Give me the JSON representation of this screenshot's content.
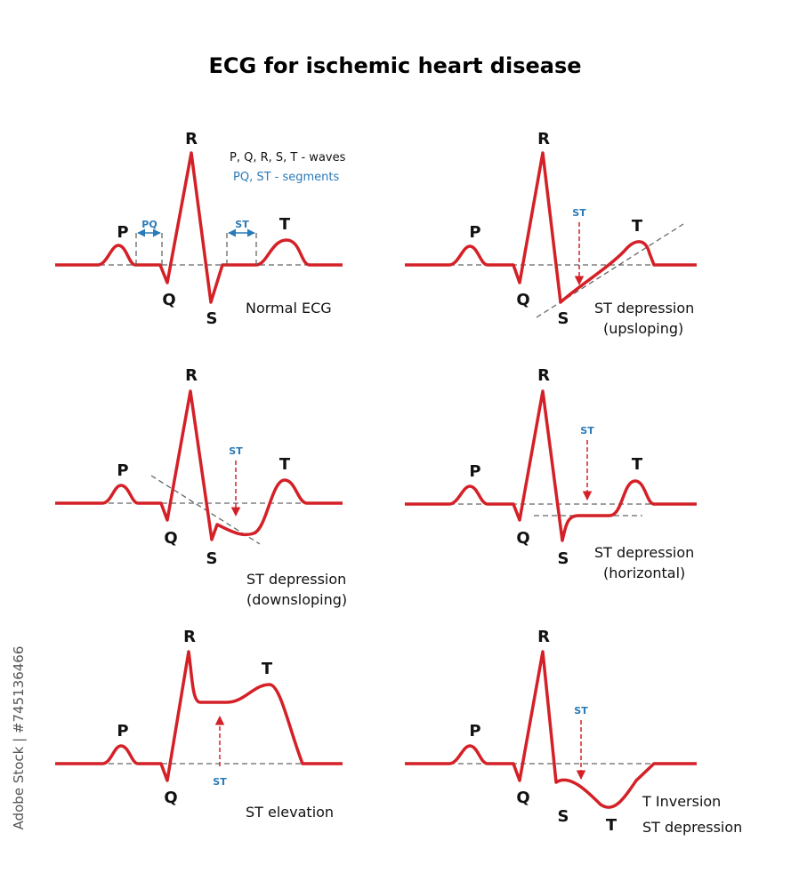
{
  "title": "ECG for ischemic heart disease",
  "watermark": "Adobe Stock | #745136466",
  "legend": [
    "P, Q, R, S, T - waves",
    "PQ, ST - segments"
  ],
  "panels": [
    {
      "labels": [
        "P",
        "Q",
        "R",
        "S",
        "T",
        "PQ",
        "ST"
      ],
      "caption": [
        "Normal ECG"
      ]
    },
    {
      "labels": [
        "P",
        "Q",
        "R",
        "S",
        "T",
        "ST"
      ],
      "caption": [
        "ST depression",
        "(upsloping)"
      ]
    },
    {
      "labels": [
        "P",
        "Q",
        "R",
        "S",
        "T",
        "ST"
      ],
      "caption": [
        "ST depression",
        "(downsloping)"
      ]
    },
    {
      "labels": [
        "P",
        "Q",
        "R",
        "S",
        "T",
        "ST"
      ],
      "caption": [
        "ST depression",
        "(horizontal)"
      ]
    },
    {
      "labels": [
        "P",
        "Q",
        "R",
        "T",
        "ST"
      ],
      "caption": [
        "ST elevation"
      ]
    },
    {
      "labels": [
        "P",
        "Q",
        "R",
        "S",
        "T",
        "ST"
      ],
      "caption": [
        "T Inversion",
        "ST depression"
      ]
    }
  ]
}
